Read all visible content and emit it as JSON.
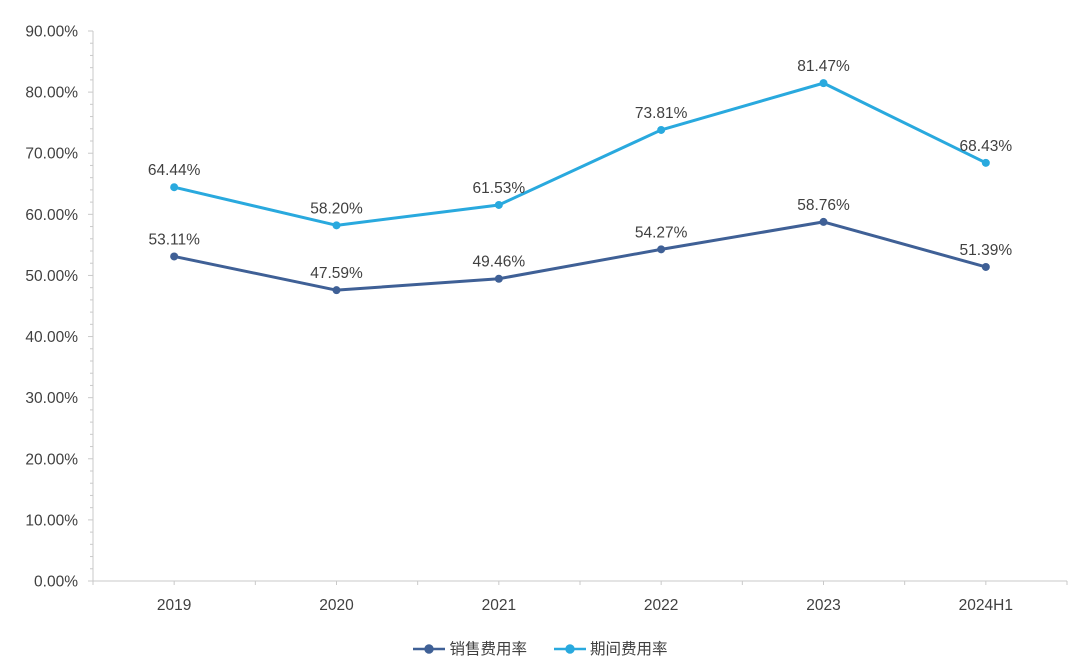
{
  "chart_data": {
    "type": "line",
    "title": "",
    "xlabel": "",
    "ylabel": "",
    "categories": [
      "2019",
      "2020",
      "2021",
      "2022",
      "2023",
      "2024H1"
    ],
    "series": [
      {
        "name": "销售费用率",
        "color": "#3F6096",
        "values": [
          53.11,
          47.59,
          49.46,
          54.27,
          58.76,
          51.39
        ],
        "labels": [
          "53.11%",
          "47.59%",
          "49.46%",
          "54.27%",
          "58.76%",
          "51.39%"
        ]
      },
      {
        "name": "期间费用率",
        "color": "#29A9DE",
        "values": [
          64.44,
          58.2,
          61.53,
          73.81,
          81.47,
          68.43
        ],
        "labels": [
          "64.44%",
          "58.20%",
          "61.53%",
          "73.81%",
          "81.47%",
          "68.43%"
        ]
      }
    ],
    "ylim": [
      0,
      90
    ],
    "y_tick_values": [
      0,
      10,
      20,
      30,
      40,
      50,
      60,
      70,
      80,
      90
    ],
    "y_tick_labels": [
      "0.00%",
      "10.00%",
      "20.00%",
      "30.00%",
      "40.00%",
      "50.00%",
      "60.00%",
      "70.00%",
      "80.00%",
      "90.00%"
    ],
    "grid": false,
    "legend_position": "bottom"
  },
  "style_colors": {
    "axis_line": "#C9C9C9",
    "tick_mark": "#C9C9C9",
    "axis_text": "#404040",
    "data_label_text": "#404040"
  }
}
